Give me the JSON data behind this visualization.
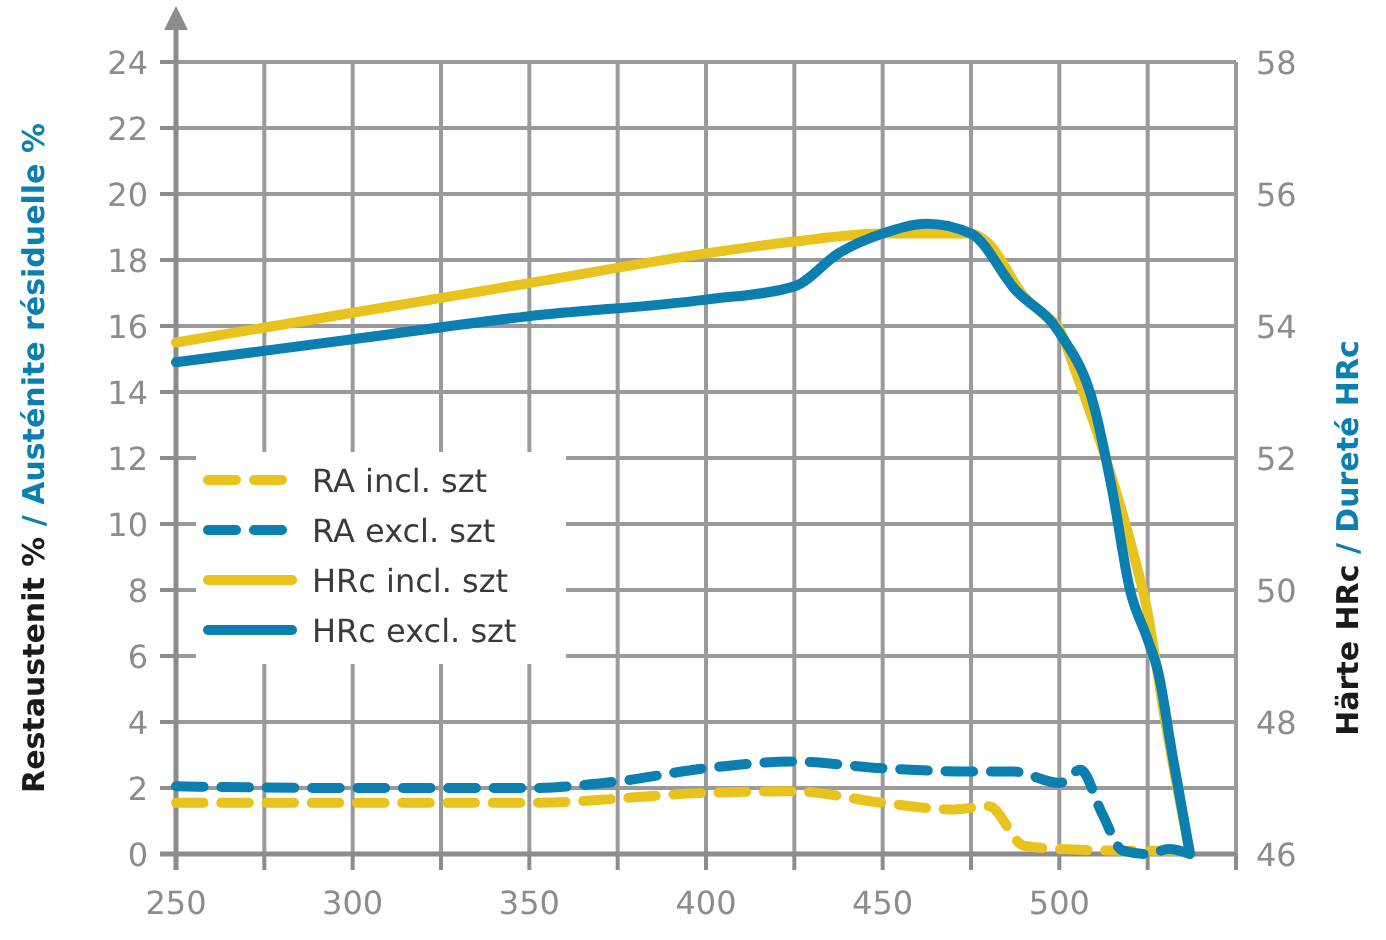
{
  "chart_data": {
    "type": "line",
    "ylabel": "Restaustenit % / Austénite résiduelle %",
    "y2label": "Härte HRc / Dureté HRc",
    "xlim": [
      250,
      550
    ],
    "xticks": [
      250,
      {
        "value": 275,
        "label": null
      },
      300,
      {
        "value": 325,
        "label": null
      },
      350,
      {
        "value": 375,
        "label": null
      },
      400,
      {
        "value": 425,
        "label": null
      },
      450,
      {
        "value": 475,
        "label": null
      },
      500,
      {
        "value": 525,
        "label": null
      },
      {
        "value": 550,
        "label": null
      }
    ],
    "ylim": [
      0,
      24
    ],
    "yticks": [
      0,
      2,
      4,
      6,
      8,
      10,
      12,
      14,
      16,
      18,
      20,
      22,
      24
    ],
    "y2lim": [
      46,
      58
    ],
    "y2ticks": [
      46,
      48,
      50,
      52,
      54,
      56,
      58
    ],
    "grid": true,
    "legend": "left",
    "marker": "none",
    "series": [
      {
        "name": "RA incl. szt",
        "color": "#e8c31e",
        "line_style": "dashed",
        "x": [
          250,
          300,
          350,
          400,
          425,
          450,
          470,
          480,
          490,
          500,
          520,
          534
        ],
        "values": [
          1.55,
          1.55,
          1.55,
          1.85,
          1.9,
          1.55,
          1.35,
          1.45,
          0.25,
          0.15,
          0.1,
          0.1
        ]
      },
      {
        "name": "RA excl. szt",
        "color": "#0a7fb0",
        "line_style": "dashed",
        "x": [
          250,
          300,
          350,
          375,
          400,
          425,
          450,
          475,
          487,
          500,
          506,
          512,
          518,
          525,
          531,
          537
        ],
        "values": [
          2.05,
          2.0,
          2.0,
          2.2,
          2.6,
          2.8,
          2.6,
          2.5,
          2.5,
          2.15,
          2.55,
          1.25,
          0.1,
          0,
          0.15,
          0
        ]
      },
      {
        "name": "HRc incl. szt",
        "color": "#e8c31e",
        "line_style": "solid",
        "axis": "y2",
        "x": [
          250,
          300,
          350,
          400,
          425,
          450,
          475,
          480,
          490,
          495,
          500,
          505,
          510,
          520,
          525,
          530,
          537
        ],
        "values": [
          53.75,
          54.2,
          54.65,
          55.1,
          55.28,
          55.4,
          55.4,
          55.25,
          54.45,
          54.2,
          53.95,
          53.25,
          52.5,
          50.75,
          49.65,
          48,
          46
        ]
      },
      {
        "name": "HRc excl. szt",
        "color": "#0a7fb0",
        "line_style": "solid",
        "axis": "y2",
        "x": [
          250,
          300,
          350,
          400,
          425,
          437.5,
          450,
          462.5,
          475,
          487.5,
          500,
          510,
          515,
          520,
          525,
          528,
          532,
          537
        ],
        "values": [
          53.45,
          53.8,
          54.15,
          54.4,
          54.6,
          55.1,
          55.4,
          55.55,
          55.4,
          54.55,
          53.9,
          52.75,
          51.5,
          50,
          49.25,
          48.75,
          47.5,
          46
        ]
      }
    ]
  }
}
